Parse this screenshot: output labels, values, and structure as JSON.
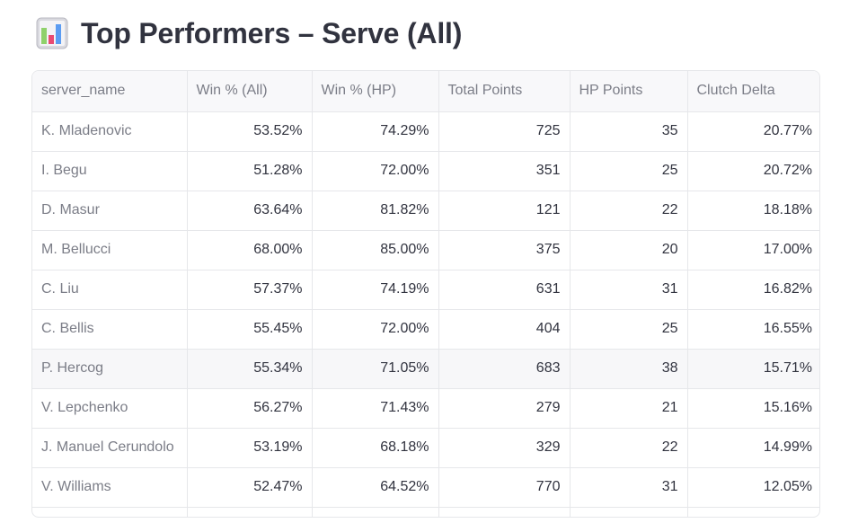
{
  "header": {
    "title": "Top Performers – Serve (All)",
    "icon": "bar-chart-icon",
    "icon_colors": [
      "#e84a72",
      "#5b9cf2",
      "#8fd16b",
      "#c7c7cf"
    ]
  },
  "table": {
    "columns": [
      "server_name",
      "Win % (All)",
      "Win % (HP)",
      "Total Points",
      "HP Points",
      "Clutch Delta"
    ],
    "rows": [
      {
        "server_name": "K. Mladenovic",
        "win_all": "53.52%",
        "win_hp": "74.29%",
        "total_points": "725",
        "hp_points": "35",
        "clutch_delta": "20.77%"
      },
      {
        "server_name": "I. Begu",
        "win_all": "51.28%",
        "win_hp": "72.00%",
        "total_points": "351",
        "hp_points": "25",
        "clutch_delta": "20.72%"
      },
      {
        "server_name": "D. Masur",
        "win_all": "63.64%",
        "win_hp": "81.82%",
        "total_points": "121",
        "hp_points": "22",
        "clutch_delta": "18.18%"
      },
      {
        "server_name": "M. Bellucci",
        "win_all": "68.00%",
        "win_hp": "85.00%",
        "total_points": "375",
        "hp_points": "20",
        "clutch_delta": "17.00%"
      },
      {
        "server_name": "C. Liu",
        "win_all": "57.37%",
        "win_hp": "74.19%",
        "total_points": "631",
        "hp_points": "31",
        "clutch_delta": "16.82%"
      },
      {
        "server_name": "C. Bellis",
        "win_all": "55.45%",
        "win_hp": "72.00%",
        "total_points": "404",
        "hp_points": "25",
        "clutch_delta": "16.55%"
      },
      {
        "server_name": "P. Hercog",
        "win_all": "55.34%",
        "win_hp": "71.05%",
        "total_points": "683",
        "hp_points": "38",
        "clutch_delta": "15.71%"
      },
      {
        "server_name": "V. Lepchenko",
        "win_all": "56.27%",
        "win_hp": "71.43%",
        "total_points": "279",
        "hp_points": "21",
        "clutch_delta": "15.16%"
      },
      {
        "server_name": "J. Manuel Cerundolo",
        "win_all": "53.19%",
        "win_hp": "68.18%",
        "total_points": "329",
        "hp_points": "22",
        "clutch_delta": "14.99%"
      },
      {
        "server_name": "V. Williams",
        "win_all": "52.47%",
        "win_hp": "64.52%",
        "total_points": "770",
        "hp_points": "31",
        "clutch_delta": "12.05%"
      }
    ]
  }
}
